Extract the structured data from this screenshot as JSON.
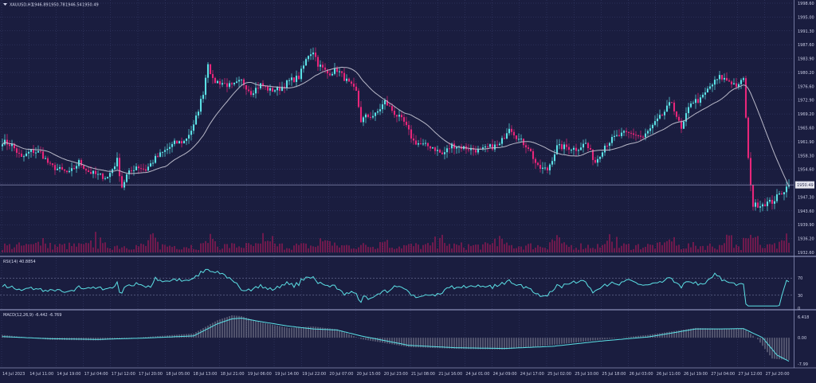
{
  "colors": {
    "background": "#1a1d3f",
    "grid": "#3c4170",
    "up_candle": "#5ce1e6",
    "down_candle": "#e8267a",
    "moving_average": "#b8b8c8",
    "volume": "#c2185b",
    "indicator_line": "#5ce1e6",
    "histogram": "#d0d0d8",
    "text": "#c9cce4"
  },
  "chart_data": [
    {
      "type": "candlestick",
      "header": {
        "symbol": "XAUUSD,H1",
        "open": "1946.89",
        "high": "1950.78",
        "low": "1946.54",
        "close": "1950.49"
      },
      "current_price_label": "1950.49",
      "ylim": [
        1932.6,
        1998.6
      ],
      "y_tick_labels": [
        "1998.60",
        "1995.00",
        "1991.30",
        "1987.60",
        "1983.90",
        "1980.20",
        "1976.60",
        "1972.90",
        "1969.20",
        "1965.60",
        "1961.90",
        "1958.30",
        "1954.60",
        "1950.90",
        "1947.30",
        "1943.60",
        "1939.90",
        "1936.20",
        "1932.60"
      ],
      "x_tick_labels": [
        "14 Jul 2023",
        "14 Jul 11:00",
        "14 Jul 19:00",
        "17 Jul 04:00",
        "17 Jul 12:00",
        "17 Jul 20:00",
        "18 Jul 05:00",
        "18 Jul 13:00",
        "18 Jul 21:00",
        "19 Jul 06:00",
        "19 Jul 14:00",
        "19 Jul 22:00",
        "20 Jul 07:00",
        "20 Jul 15:00",
        "20 Jul 23:00",
        "21 Jul 08:00",
        "21 Jul 16:00",
        "24 Jul 01:00",
        "24 Jul 09:00",
        "24 Jul 17:00",
        "25 Jul 02:00",
        "25 Jul 10:00",
        "25 Jul 18:00",
        "26 Jul 03:00",
        "26 Jul 11:00",
        "26 Jul 19:00",
        "27 Jul 04:00",
        "27 Jul 12:00",
        "27 Jul 20:00"
      ],
      "close_anchors": [
        [
          0,
          1962.0
        ],
        [
          4,
          1961.0
        ],
        [
          8,
          1957.5
        ],
        [
          12,
          1959.5
        ],
        [
          16,
          1959.0
        ],
        [
          20,
          1955.5
        ],
        [
          24,
          1954.5
        ],
        [
          28,
          1953.5
        ],
        [
          32,
          1956.5
        ],
        [
          36,
          1954.0
        ],
        [
          40,
          1953.0
        ],
        [
          44,
          1952.5
        ],
        [
          48,
          1957.0
        ],
        [
          50,
          1950.0
        ],
        [
          52,
          1953.0
        ],
        [
          56,
          1955.5
        ],
        [
          60,
          1954.5
        ],
        [
          64,
          1957.5
        ],
        [
          68,
          1959.5
        ],
        [
          72,
          1961.5
        ],
        [
          76,
          1962.0
        ],
        [
          80,
          1966.0
        ],
        [
          84,
          1975.0
        ],
        [
          86,
          1983.0
        ],
        [
          88,
          1978.0
        ],
        [
          92,
          1977.5
        ],
        [
          96,
          1976.5
        ],
        [
          100,
          1978.0
        ],
        [
          104,
          1975.0
        ],
        [
          108,
          1977.0
        ],
        [
          112,
          1975.5
        ],
        [
          116,
          1976.0
        ],
        [
          120,
          1978.0
        ],
        [
          124,
          1979.0
        ],
        [
          128,
          1985.0
        ],
        [
          130,
          1986.0
        ],
        [
          132,
          1982.5
        ],
        [
          136,
          1980.0
        ],
        [
          140,
          1981.0
        ],
        [
          144,
          1978.0
        ],
        [
          148,
          1975.0
        ],
        [
          150,
          1967.5
        ],
        [
          152,
          1968.5
        ],
        [
          156,
          1969.0
        ],
        [
          160,
          1972.5
        ],
        [
          164,
          1969.5
        ],
        [
          168,
          1967.0
        ],
        [
          172,
          1962.0
        ],
        [
          176,
          1961.0
        ],
        [
          180,
          1960.5
        ],
        [
          184,
          1958.5
        ],
        [
          188,
          1961.0
        ],
        [
          192,
          1960.5
        ],
        [
          196,
          1960.0
        ],
        [
          200,
          1959.5
        ],
        [
          204,
          1960.5
        ],
        [
          208,
          1961.0
        ],
        [
          212,
          1966.0
        ],
        [
          216,
          1962.5
        ],
        [
          220,
          1960.5
        ],
        [
          224,
          1955.0
        ],
        [
          228,
          1954.5
        ],
        [
          232,
          1960.5
        ],
        [
          236,
          1960.5
        ],
        [
          240,
          1960.0
        ],
        [
          244,
          1961.5
        ],
        [
          248,
          1956.5
        ],
        [
          252,
          1961.0
        ],
        [
          256,
          1963.0
        ],
        [
          260,
          1964.0
        ],
        [
          264,
          1964.0
        ],
        [
          268,
          1963.0
        ],
        [
          272,
          1966.0
        ],
        [
          276,
          1969.0
        ],
        [
          280,
          1972.5
        ],
        [
          284,
          1965.0
        ],
        [
          288,
          1972.5
        ],
        [
          292,
          1973.0
        ],
        [
          296,
          1976.5
        ],
        [
          300,
          1979.0
        ],
        [
          304,
          1978.0
        ],
        [
          308,
          1976.5
        ],
        [
          310,
          1979.0
        ],
        [
          312,
          1957.0
        ],
        [
          314,
          1945.0
        ],
        [
          318,
          1945.5
        ],
        [
          322,
          1946.0
        ],
        [
          326,
          1948.5
        ],
        [
          329,
          1950.49
        ]
      ],
      "candle_count": 330,
      "moving_average_period": 20,
      "volume_ylim": [
        0,
        1
      ]
    },
    {
      "type": "line",
      "label": "RSI(14) 40.8854",
      "ylim": [
        0,
        100
      ],
      "y_tick_labels": [
        "70",
        "30",
        "0"
      ],
      "levels": [
        70,
        30
      ]
    },
    {
      "type": "bar",
      "label": "MACD(12,26,9) -6.442 -6.769",
      "y_tick_labels": [
        "6.418",
        "0.00",
        "-7.99"
      ],
      "ylim": [
        -7.99,
        6.418
      ],
      "signal_anchors": [
        [
          0,
          0.3
        ],
        [
          20,
          -0.3
        ],
        [
          40,
          -0.5
        ],
        [
          60,
          -0.1
        ],
        [
          80,
          0.5
        ],
        [
          90,
          4.0
        ],
        [
          96,
          5.4
        ],
        [
          100,
          5.6
        ],
        [
          108,
          4.6
        ],
        [
          120,
          3.3
        ],
        [
          130,
          2.5
        ],
        [
          140,
          2.2
        ],
        [
          150,
          0.5
        ],
        [
          170,
          -2.2
        ],
        [
          190,
          -2.9
        ],
        [
          210,
          -3.1
        ],
        [
          230,
          -2.5
        ],
        [
          250,
          -1.0
        ],
        [
          270,
          0.2
        ],
        [
          290,
          2.5
        ],
        [
          300,
          2.5
        ],
        [
          310,
          2.6
        ],
        [
          318,
          0.0
        ],
        [
          324,
          -5.0
        ],
        [
          329,
          -6.769
        ]
      ],
      "macd_anchors": [
        [
          0,
          0.8
        ],
        [
          20,
          -0.6
        ],
        [
          40,
          -0.8
        ],
        [
          60,
          0.2
        ],
        [
          80,
          1.2
        ],
        [
          90,
          5.0
        ],
        [
          96,
          6.418
        ],
        [
          100,
          6.2
        ],
        [
          108,
          4.4
        ],
        [
          120,
          2.8
        ],
        [
          130,
          3.2
        ],
        [
          140,
          2.4
        ],
        [
          150,
          -0.4
        ],
        [
          170,
          -2.7
        ],
        [
          190,
          -3.2
        ],
        [
          210,
          -3.4
        ],
        [
          230,
          -2.1
        ],
        [
          250,
          -0.6
        ],
        [
          270,
          0.8
        ],
        [
          290,
          2.8
        ],
        [
          300,
          2.6
        ],
        [
          310,
          2.7
        ],
        [
          316,
          -0.5
        ],
        [
          322,
          -6.0
        ],
        [
          329,
          -6.442
        ]
      ]
    }
  ]
}
